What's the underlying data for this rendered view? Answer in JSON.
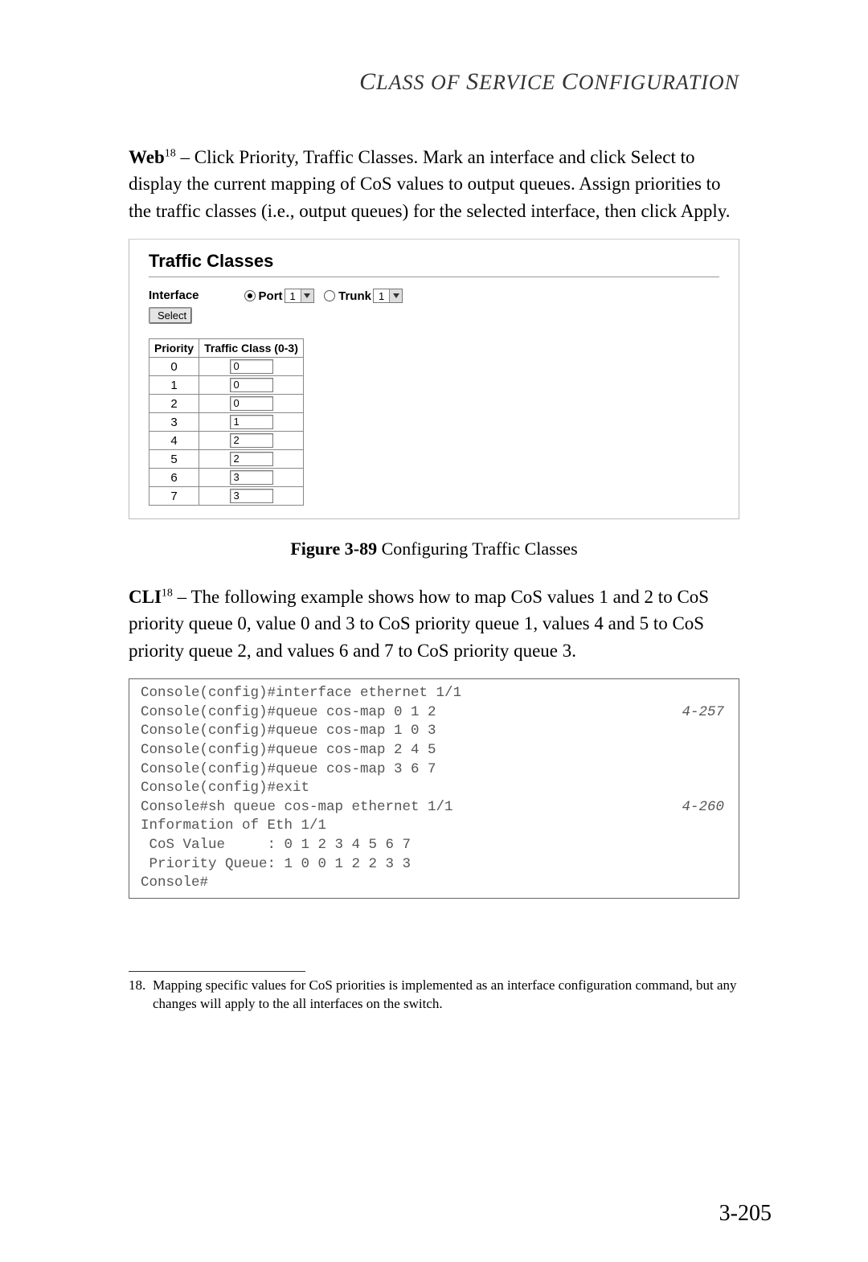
{
  "header": {
    "title": "Class of Service Configuration"
  },
  "web_section": {
    "label": "Web",
    "footnote_ref": "18",
    "text": " – Click Priority, Traffic Classes. Mark an interface and click Select to display the current mapping of CoS values to output queues. Assign priorities to the traffic classes (i.e., output queues) for the selected interface, then click Apply."
  },
  "panel": {
    "title": "Traffic Classes",
    "interface_label": "Interface",
    "select_button": "Select",
    "port_label": "Port",
    "port_value": "1",
    "port_checked": true,
    "trunk_label": "Trunk",
    "trunk_value": "1",
    "trunk_checked": false,
    "table": {
      "col_priority": "Priority",
      "col_traffic": "Traffic Class (0-3)",
      "rows": [
        {
          "priority": "0",
          "value": "0"
        },
        {
          "priority": "1",
          "value": "0"
        },
        {
          "priority": "2",
          "value": "0"
        },
        {
          "priority": "3",
          "value": "1"
        },
        {
          "priority": "4",
          "value": "2"
        },
        {
          "priority": "5",
          "value": "2"
        },
        {
          "priority": "6",
          "value": "3"
        },
        {
          "priority": "7",
          "value": "3"
        }
      ]
    }
  },
  "figure_caption": {
    "label": "Figure 3-89",
    "text": "  Configuring Traffic Classes"
  },
  "cli_section": {
    "label": "CLI",
    "footnote_ref": "18",
    "text": " – The following example shows how to map CoS values 1 and 2 to CoS priority queue 0, value 0 and 3 to CoS priority queue 1, values 4 and 5 to CoS priority queue 2, and values 6 and 7 to CoS priority queue 3."
  },
  "cli_box": {
    "lines": [
      {
        "text": "Console(config)#interface ethernet 1/1",
        "ref": ""
      },
      {
        "text": "Console(config)#queue cos-map 0 1 2",
        "ref": "4-257"
      },
      {
        "text": "Console(config)#queue cos-map 1 0 3",
        "ref": ""
      },
      {
        "text": "Console(config)#queue cos-map 2 4 5",
        "ref": ""
      },
      {
        "text": "Console(config)#queue cos-map 3 6 7",
        "ref": ""
      },
      {
        "text": "Console(config)#exit",
        "ref": ""
      },
      {
        "text": "Console#sh queue cos-map ethernet 1/1",
        "ref": "4-260"
      },
      {
        "text": "Information of Eth 1/1",
        "ref": ""
      },
      {
        "text": " CoS Value     : 0 1 2 3 4 5 6 7",
        "ref": ""
      },
      {
        "text": " Priority Queue: 1 0 0 1 2 2 3 3",
        "ref": ""
      },
      {
        "text": "Console#",
        "ref": ""
      }
    ]
  },
  "footnote": {
    "num": "18.",
    "text": "Mapping specific values for CoS priorities is implemented as an interface configuration command, but any changes will apply to the all interfaces on the switch."
  },
  "page_number": "3-205"
}
